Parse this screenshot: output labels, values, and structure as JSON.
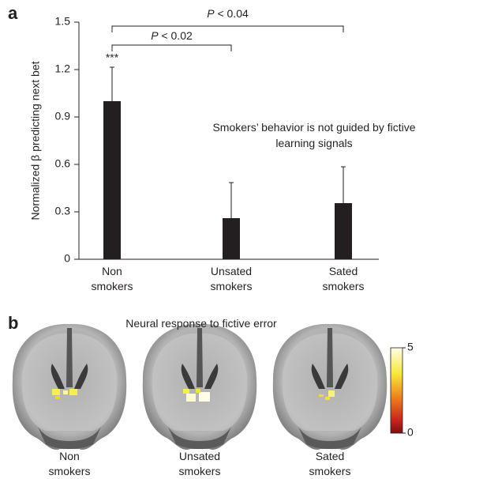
{
  "chart_data": {
    "type": "bar",
    "panel_label": "a",
    "ylabel": "Normalized β predicting next bet",
    "categories": [
      "Non smokers",
      "Unsated smokers",
      "Sated smokers"
    ],
    "values": [
      1.0,
      0.26,
      0.355
    ],
    "errors": [
      0.215,
      0.225,
      0.23
    ],
    "color": "#231f20",
    "ylim": [
      0,
      1.5
    ],
    "yticks": [
      0,
      0.3,
      0.6,
      0.9,
      1.2,
      1.5
    ],
    "annotations": [
      "***",
      "P < 0.02",
      "P < 0.04",
      "Smokers’ behavior is not guided by fictive learning signals"
    ]
  },
  "brain_panel": {
    "panel_label": "b",
    "title": "Neural response to fictive error",
    "labels": [
      "Non smokers",
      "Unsated smokers",
      "Sated smokers"
    ],
    "colorbar": {
      "lim": [
        0,
        5
      ],
      "ticks": [
        0,
        5
      ]
    }
  }
}
